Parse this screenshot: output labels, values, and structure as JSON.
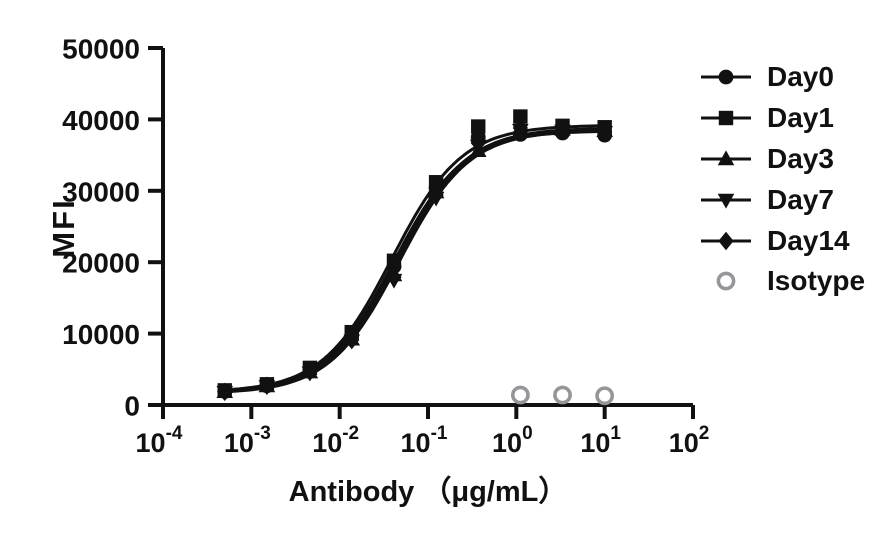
{
  "figure_title": "",
  "colors": {
    "axis": "#111111",
    "series": "#111111",
    "isotype": "#96969a",
    "background": "#ffffff"
  },
  "chart_data": {
    "type": "line",
    "subtype": "dose-response-sigmoid-fit-with-markers",
    "x_label": "Antibody （μg/mL）",
    "y_label": "MFI",
    "x_scale": "log10",
    "x_tick_exponents": [
      -4,
      -3,
      -2,
      -1,
      0,
      1,
      2
    ],
    "x_tick_base": "10",
    "y_ticks": [
      0,
      10000,
      20000,
      30000,
      40000,
      50000
    ],
    "ylim": [
      0,
      50000
    ],
    "xlim": [
      0.0001,
      100
    ],
    "grid": false,
    "legend_position": "right",
    "x": [
      0.0005,
      0.0015,
      0.0046,
      0.0137,
      0.0412,
      0.1235,
      0.3704,
      1.111,
      3.333,
      10
    ],
    "series": [
      {
        "name": "Day0",
        "marker": "circle",
        "values": [
          1900,
          2700,
          4800,
          9700,
          19400,
          30400,
          37500,
          37900,
          38100,
          37800
        ],
        "fit": {
          "bottom": 1700,
          "top": 38400,
          "ec50": 0.041,
          "hill": 1.1
        }
      },
      {
        "name": "Day1",
        "marker": "square",
        "values": [
          2050,
          2900,
          5200,
          10200,
          20200,
          31200,
          39000,
          40400,
          39100,
          38900
        ],
        "fit": {
          "bottom": 1800,
          "top": 39200,
          "ec50": 0.039,
          "hill": 1.1
        }
      },
      {
        "name": "Day3",
        "marker": "triangle-up",
        "values": [
          1850,
          2650,
          4600,
          9200,
          18200,
          29800,
          35600,
          38700,
          38600,
          38400
        ],
        "fit": {
          "bottom": 1650,
          "top": 38800,
          "ec50": 0.044,
          "hill": 1.1
        }
      },
      {
        "name": "Day7",
        "marker": "triangle-down",
        "values": [
          1800,
          2600,
          4500,
          9000,
          17500,
          29000,
          36300,
          38500,
          38400,
          38200
        ],
        "fit": {
          "bottom": 1600,
          "top": 38500,
          "ec50": 0.047,
          "hill": 1.1
        }
      },
      {
        "name": "Day14",
        "marker": "diamond",
        "values": [
          1850,
          2700,
          4650,
          9100,
          17900,
          29400,
          36700,
          38800,
          38500,
          38300
        ],
        "fit": {
          "bottom": 1650,
          "top": 38650,
          "ec50": 0.045,
          "hill": 1.1
        }
      }
    ],
    "isotype_series": {
      "name": "Isotype",
      "marker": "open-circle",
      "x": [
        1.111,
        3.333,
        10
      ],
      "values": [
        1400,
        1400,
        1300
      ]
    }
  }
}
